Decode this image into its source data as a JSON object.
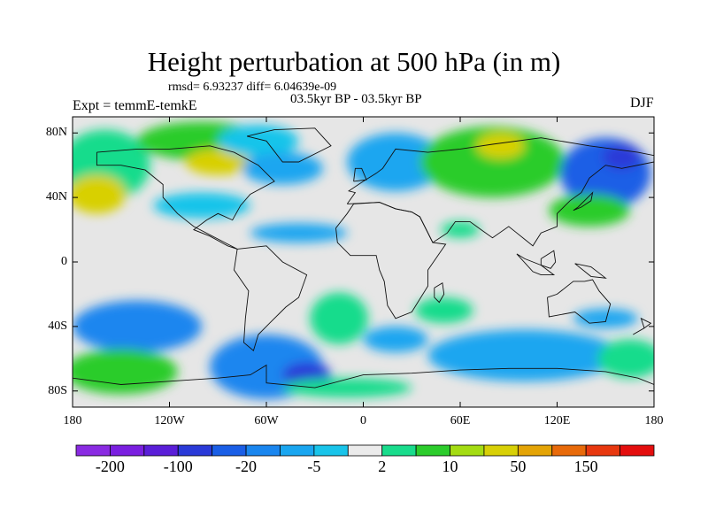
{
  "title": "Height perturbation at 500 hPa (in m)",
  "stats": "rmsd= 6.93237 diff= 6.04639e-09",
  "experiment": "Expt = temmE-temkE",
  "period": "03.5kyr BP - 03.5kyr BP",
  "season": "DJF",
  "axes": {
    "y_ticks": [
      {
        "label": "80N",
        "value": 80
      },
      {
        "label": "40N",
        "value": 40
      },
      {
        "label": "0",
        "value": 0
      },
      {
        "label": "40S",
        "value": -40
      },
      {
        "label": "80S",
        "value": -80
      }
    ],
    "x_ticks": [
      {
        "label": "180",
        "value": -180
      },
      {
        "label": "120W",
        "value": -120
      },
      {
        "label": "60W",
        "value": -60
      },
      {
        "label": "0",
        "value": 0
      },
      {
        "label": "60E",
        "value": 60
      },
      {
        "label": "120E",
        "value": 120
      },
      {
        "label": "180",
        "value": 180
      }
    ],
    "lon_range": [
      -180,
      180
    ],
    "lat_range": [
      -90,
      90
    ]
  },
  "colorbar": {
    "colors": [
      "#8a2be2",
      "#7a1fe0",
      "#5a1ed8",
      "#2a3ad8",
      "#1a5ee6",
      "#1a86ef",
      "#1aa6f0",
      "#19c4ea",
      "#ebebeb",
      "#19dc8c",
      "#2ccc2c",
      "#a4dc12",
      "#d8d006",
      "#e4a406",
      "#e86a0a",
      "#e8380f",
      "#e40e0e"
    ],
    "labels": [
      "-200",
      "-100",
      "-20",
      "-5",
      "2",
      "10",
      "50",
      "150"
    ]
  },
  "field": {
    "background_color": "#e6e6e6",
    "regions": [
      {
        "lon": -160,
        "lat": 60,
        "rx": 28,
        "ry": 22,
        "level": 9
      },
      {
        "lon": -165,
        "lat": 42,
        "rx": 18,
        "ry": 12,
        "level": 12
      },
      {
        "lon": -100,
        "lat": 75,
        "rx": 40,
        "ry": 12,
        "level": 10
      },
      {
        "lon": -90,
        "lat": 62,
        "rx": 20,
        "ry": 8,
        "level": 12
      },
      {
        "lon": -65,
        "lat": 75,
        "rx": 25,
        "ry": 10,
        "level": 7
      },
      {
        "lon": -50,
        "lat": 58,
        "rx": 25,
        "ry": 10,
        "level": 6
      },
      {
        "lon": -100,
        "lat": 35,
        "rx": 30,
        "ry": 8,
        "level": 7
      },
      {
        "lon": -40,
        "lat": 18,
        "rx": 30,
        "ry": 6,
        "level": 6
      },
      {
        "lon": 20,
        "lat": 62,
        "rx": 30,
        "ry": 18,
        "level": 6
      },
      {
        "lon": 80,
        "lat": 62,
        "rx": 45,
        "ry": 22,
        "level": 10
      },
      {
        "lon": 85,
        "lat": 72,
        "rx": 15,
        "ry": 8,
        "level": 12
      },
      {
        "lon": 150,
        "lat": 55,
        "rx": 28,
        "ry": 22,
        "level": 4
      },
      {
        "lon": 160,
        "lat": 65,
        "rx": 12,
        "ry": 8,
        "level": 3
      },
      {
        "lon": 140,
        "lat": 32,
        "rx": 25,
        "ry": 10,
        "level": 10
      },
      {
        "lon": 60,
        "lat": 20,
        "rx": 12,
        "ry": 5,
        "level": 9
      },
      {
        "lon": -140,
        "lat": -40,
        "rx": 40,
        "ry": 16,
        "level": 5
      },
      {
        "lon": -150,
        "lat": -68,
        "rx": 35,
        "ry": 14,
        "level": 10
      },
      {
        "lon": -60,
        "lat": -65,
        "rx": 35,
        "ry": 20,
        "level": 5
      },
      {
        "lon": -35,
        "lat": -70,
        "rx": 15,
        "ry": 8,
        "level": 3
      },
      {
        "lon": -15,
        "lat": -35,
        "rx": 18,
        "ry": 16,
        "level": 9
      },
      {
        "lon": 20,
        "lat": -48,
        "rx": 20,
        "ry": 8,
        "level": 6
      },
      {
        "lon": 50,
        "lat": -30,
        "rx": 18,
        "ry": 8,
        "level": 9
      },
      {
        "lon": 100,
        "lat": -58,
        "rx": 60,
        "ry": 16,
        "level": 6
      },
      {
        "lon": 150,
        "lat": -35,
        "rx": 20,
        "ry": 6,
        "level": 6
      },
      {
        "lon": 165,
        "lat": -60,
        "rx": 20,
        "ry": 12,
        "level": 9
      },
      {
        "lon": -10,
        "lat": -78,
        "rx": 40,
        "ry": 6,
        "level": 9
      }
    ]
  }
}
